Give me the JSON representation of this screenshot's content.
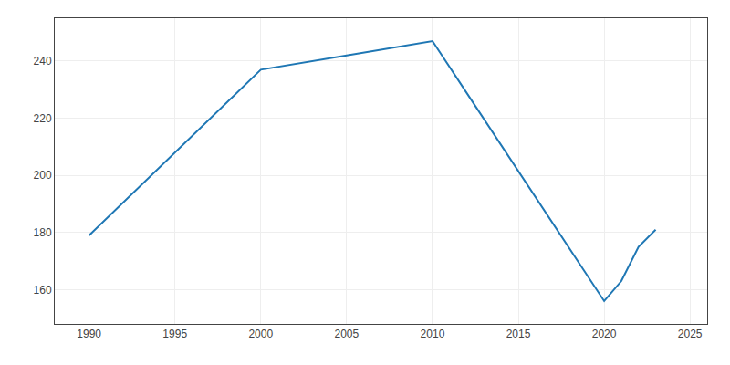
{
  "chart_data": {
    "type": "line",
    "x": [
      1990,
      2000,
      2005,
      2010,
      2020,
      2021,
      2022,
      2023
    ],
    "values": [
      179,
      237,
      242,
      247,
      156,
      163,
      175,
      181
    ],
    "xlim": [
      1988,
      2026
    ],
    "ylim": [
      148,
      255
    ],
    "xticks": [
      1990,
      1995,
      2000,
      2005,
      2010,
      2015,
      2020,
      2025
    ],
    "yticks": [
      160,
      180,
      200,
      220,
      240
    ],
    "grid": true
  }
}
